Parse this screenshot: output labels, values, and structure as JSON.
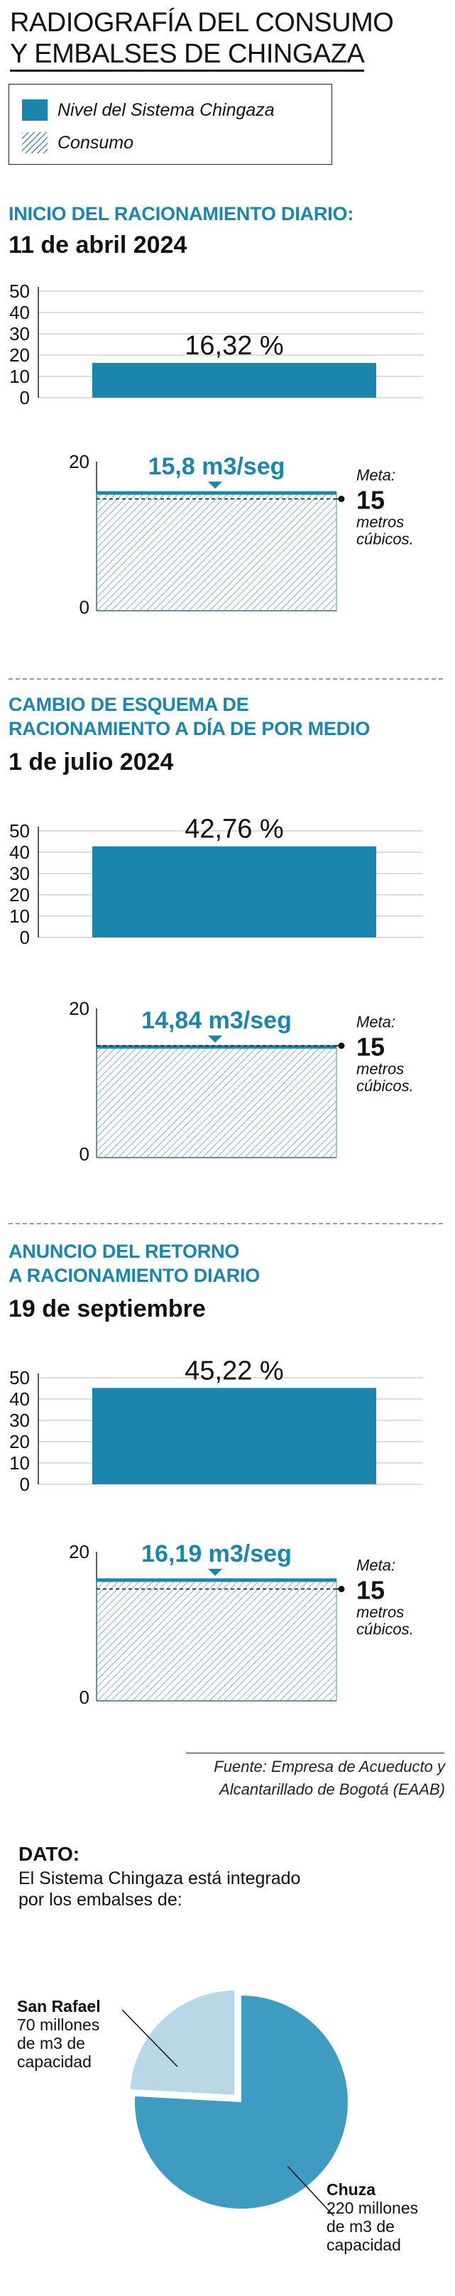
{
  "title": {
    "line1": "RADIOGRAFÍA DEL CONSUMO",
    "line2": "Y EMBALSES DE CHINGAZA"
  },
  "legend": {
    "level": "Nivel del Sistema Chingaza",
    "consumption": "Consumo"
  },
  "colors": {
    "accent": "#1a86ad",
    "hatch": "#4f8fb0",
    "pie_chuza": "#3e9bc1",
    "pie_sanrafael": "#b9d8e7"
  },
  "sections": [
    {
      "heading_lines": [
        "INICIO DEL RACIONAMIENTO DIARIO:"
      ],
      "date": "11 de abril 2024",
      "level_value": 16.32,
      "level_label": "16,32 %",
      "consumption_value": 15.8,
      "consumption_label": "15,8 m3/seg",
      "goal_value": 15
    },
    {
      "heading_lines": [
        "CAMBIO DE ESQUEMA DE",
        "RACIONAMIENTO A DÍA DE POR MEDIO"
      ],
      "date": "1 de julio 2024",
      "level_value": 42.76,
      "level_label": "42,76 %",
      "consumption_value": 14.84,
      "consumption_label": "14,84 m3/seg",
      "goal_value": 15
    },
    {
      "heading_lines": [
        "ANUNCIO DEL RETORNO",
        "A RACIONAMIENTO DIARIO"
      ],
      "date": "19 de septiembre",
      "level_value": 45.22,
      "level_label": "45,22 %",
      "consumption_value": 16.19,
      "consumption_label": "16,19 m3/seg",
      "goal_value": 15
    }
  ],
  "chart_data": [
    {
      "type": "bar",
      "categories": [
        "11 de abril 2024",
        "1 de julio 2024",
        "19 de septiembre"
      ],
      "values": [
        16.32,
        42.76,
        45.22
      ],
      "ylim": [
        0,
        50
      ],
      "yticks": [
        0,
        10,
        20,
        30,
        40,
        50
      ],
      "grid": true
    },
    {
      "type": "bar",
      "categories": [
        "11 de abril 2024",
        "1 de julio 2024",
        "19 de septiembre"
      ],
      "values": [
        15.8,
        14.84,
        16.19
      ],
      "ylim": [
        0,
        20
      ],
      "yticks": [
        0,
        20
      ],
      "goal": {
        "label_top": "Meta:",
        "value": "15",
        "label_bottom": [
          "metros",
          "cúbicos."
        ]
      }
    },
    {
      "type": "pie",
      "slices": [
        {
          "name": "Chuza",
          "value": 220,
          "lines": [
            "220 millones",
            "de m3 de",
            "capacidad"
          ]
        },
        {
          "name": "San Rafael",
          "value": 70,
          "lines": [
            "70 millones",
            "de m3 de",
            "capacidad"
          ]
        }
      ]
    }
  ],
  "source": {
    "line1": "Fuente: Empresa de Acueducto y",
    "line2": "Alcantarillado de Bogotá (EAAB)"
  },
  "dato": {
    "title": "DATO:",
    "line1": "El Sistema Chingaza está integrado",
    "line2": "por los embalses de:"
  }
}
